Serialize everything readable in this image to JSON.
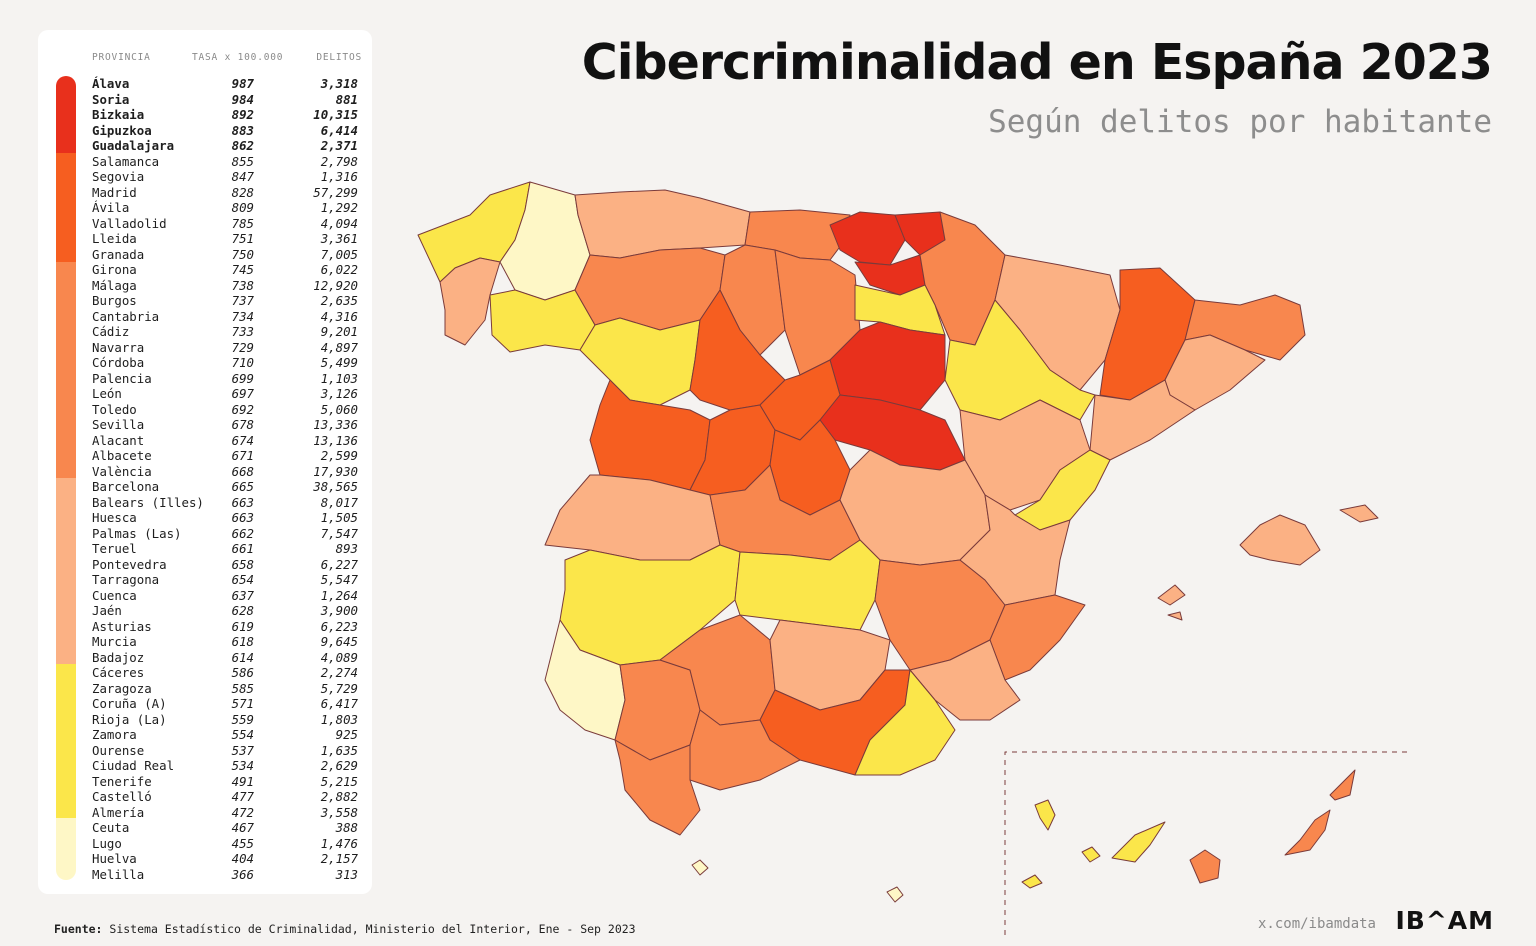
{
  "header": {
    "title": "Cibercriminalidad en España 2023",
    "subtitle": "Según delitos por habitante"
  },
  "table": {
    "col_province": "PROVINCIA",
    "col_rate": "TASA x 100.000",
    "col_crimes": "DELITOS",
    "rows": [
      {
        "name": "Álava",
        "rate": "987",
        "crimes": "3,318",
        "bold": true
      },
      {
        "name": "Soria",
        "rate": "984",
        "crimes": "881",
        "bold": true
      },
      {
        "name": "Bizkaia",
        "rate": "892",
        "crimes": "10,315",
        "bold": true
      },
      {
        "name": "Gipuzkoa",
        "rate": "883",
        "crimes": "6,414",
        "bold": true
      },
      {
        "name": "Guadalajara",
        "rate": "862",
        "crimes": "2,371",
        "bold": true
      },
      {
        "name": "Salamanca",
        "rate": "855",
        "crimes": "2,798"
      },
      {
        "name": "Segovia",
        "rate": "847",
        "crimes": "1,316"
      },
      {
        "name": "Madrid",
        "rate": "828",
        "crimes": "57,299"
      },
      {
        "name": "Ávila",
        "rate": "809",
        "crimes": "1,292"
      },
      {
        "name": "Valladolid",
        "rate": "785",
        "crimes": "4,094"
      },
      {
        "name": "Lleida",
        "rate": "751",
        "crimes": "3,361"
      },
      {
        "name": "Granada",
        "rate": "750",
        "crimes": "7,005"
      },
      {
        "name": "Girona",
        "rate": "745",
        "crimes": "6,022"
      },
      {
        "name": "Málaga",
        "rate": "738",
        "crimes": "12,920"
      },
      {
        "name": "Burgos",
        "rate": "737",
        "crimes": "2,635"
      },
      {
        "name": "Cantabria",
        "rate": "734",
        "crimes": "4,316"
      },
      {
        "name": "Cádiz",
        "rate": "733",
        "crimes": "9,201"
      },
      {
        "name": "Navarra",
        "rate": "729",
        "crimes": "4,897"
      },
      {
        "name": "Córdoba",
        "rate": "710",
        "crimes": "5,499"
      },
      {
        "name": "Palencia",
        "rate": "699",
        "crimes": "1,103"
      },
      {
        "name": "León",
        "rate": "697",
        "crimes": "3,126"
      },
      {
        "name": "Toledo",
        "rate": "692",
        "crimes": "5,060"
      },
      {
        "name": "Sevilla",
        "rate": "678",
        "crimes": "13,336"
      },
      {
        "name": "Alacant",
        "rate": "674",
        "crimes": "13,136"
      },
      {
        "name": "Albacete",
        "rate": "671",
        "crimes": "2,599"
      },
      {
        "name": "València",
        "rate": "668",
        "crimes": "17,930"
      },
      {
        "name": "Barcelona",
        "rate": "665",
        "crimes": "38,565"
      },
      {
        "name": "Balears (Illes)",
        "rate": "663",
        "crimes": "8,017"
      },
      {
        "name": "Huesca",
        "rate": "663",
        "crimes": "1,505"
      },
      {
        "name": "Palmas (Las)",
        "rate": "662",
        "crimes": "7,547"
      },
      {
        "name": "Teruel",
        "rate": "661",
        "crimes": "893"
      },
      {
        "name": "Pontevedra",
        "rate": "658",
        "crimes": "6,227"
      },
      {
        "name": "Tarragona",
        "rate": "654",
        "crimes": "5,547"
      },
      {
        "name": "Cuenca",
        "rate": "637",
        "crimes": "1,264"
      },
      {
        "name": "Jaén",
        "rate": "628",
        "crimes": "3,900"
      },
      {
        "name": "Asturias",
        "rate": "619",
        "crimes": "6,223"
      },
      {
        "name": "Murcia",
        "rate": "618",
        "crimes": "9,645"
      },
      {
        "name": "Badajoz",
        "rate": "614",
        "crimes": "4,089"
      },
      {
        "name": "Cáceres",
        "rate": "586",
        "crimes": "2,274"
      },
      {
        "name": "Zaragoza",
        "rate": "585",
        "crimes": "5,729"
      },
      {
        "name": "Coruña (A)",
        "rate": "571",
        "crimes": "6,417"
      },
      {
        "name": "Rioja (La)",
        "rate": "559",
        "crimes": "1,803"
      },
      {
        "name": "Zamora",
        "rate": "554",
        "crimes": "925"
      },
      {
        "name": "Ourense",
        "rate": "537",
        "crimes": "1,635"
      },
      {
        "name": "Ciudad Real",
        "rate": "534",
        "crimes": "2,629"
      },
      {
        "name": "Tenerife",
        "rate": "491",
        "crimes": "5,215"
      },
      {
        "name": "Castelló",
        "rate": "477",
        "crimes": "2,882"
      },
      {
        "name": "Almería",
        "rate": "472",
        "crimes": "3,558"
      },
      {
        "name": "Ceuta",
        "rate": "467",
        "crimes": "388"
      },
      {
        "name": "Lugo",
        "rate": "455",
        "crimes": "1,476"
      },
      {
        "name": "Huelva",
        "rate": "404",
        "crimes": "2,157"
      },
      {
        "name": "Melilla",
        "rate": "366",
        "crimes": "313"
      }
    ]
  },
  "legend_bands": [
    {
      "color": "#e8301c",
      "count": 5
    },
    {
      "color": "#f65e20",
      "count": 7
    },
    {
      "color": "#f8874e",
      "count": 14
    },
    {
      "color": "#fbb184",
      "count": 12
    },
    {
      "color": "#fbe64a",
      "count": 10
    },
    {
      "color": "#fef7c6",
      "count": 4
    }
  ],
  "map_colors": {
    "tier1": "#e8301c",
    "tier2": "#f65e20",
    "tier3": "#f8874e",
    "tier4": "#fbb184",
    "tier5": "#fbe64a",
    "tier6": "#fef7c6",
    "stroke": "#7a3b3b"
  },
  "footer": {
    "source_label": "Fuente:",
    "source_text": "Sistema Estadístico de Criminalidad, Ministerio del Interior, Ene - Sep 2023",
    "credit": "x.com/ibamdata",
    "logo": "IB^AM"
  }
}
